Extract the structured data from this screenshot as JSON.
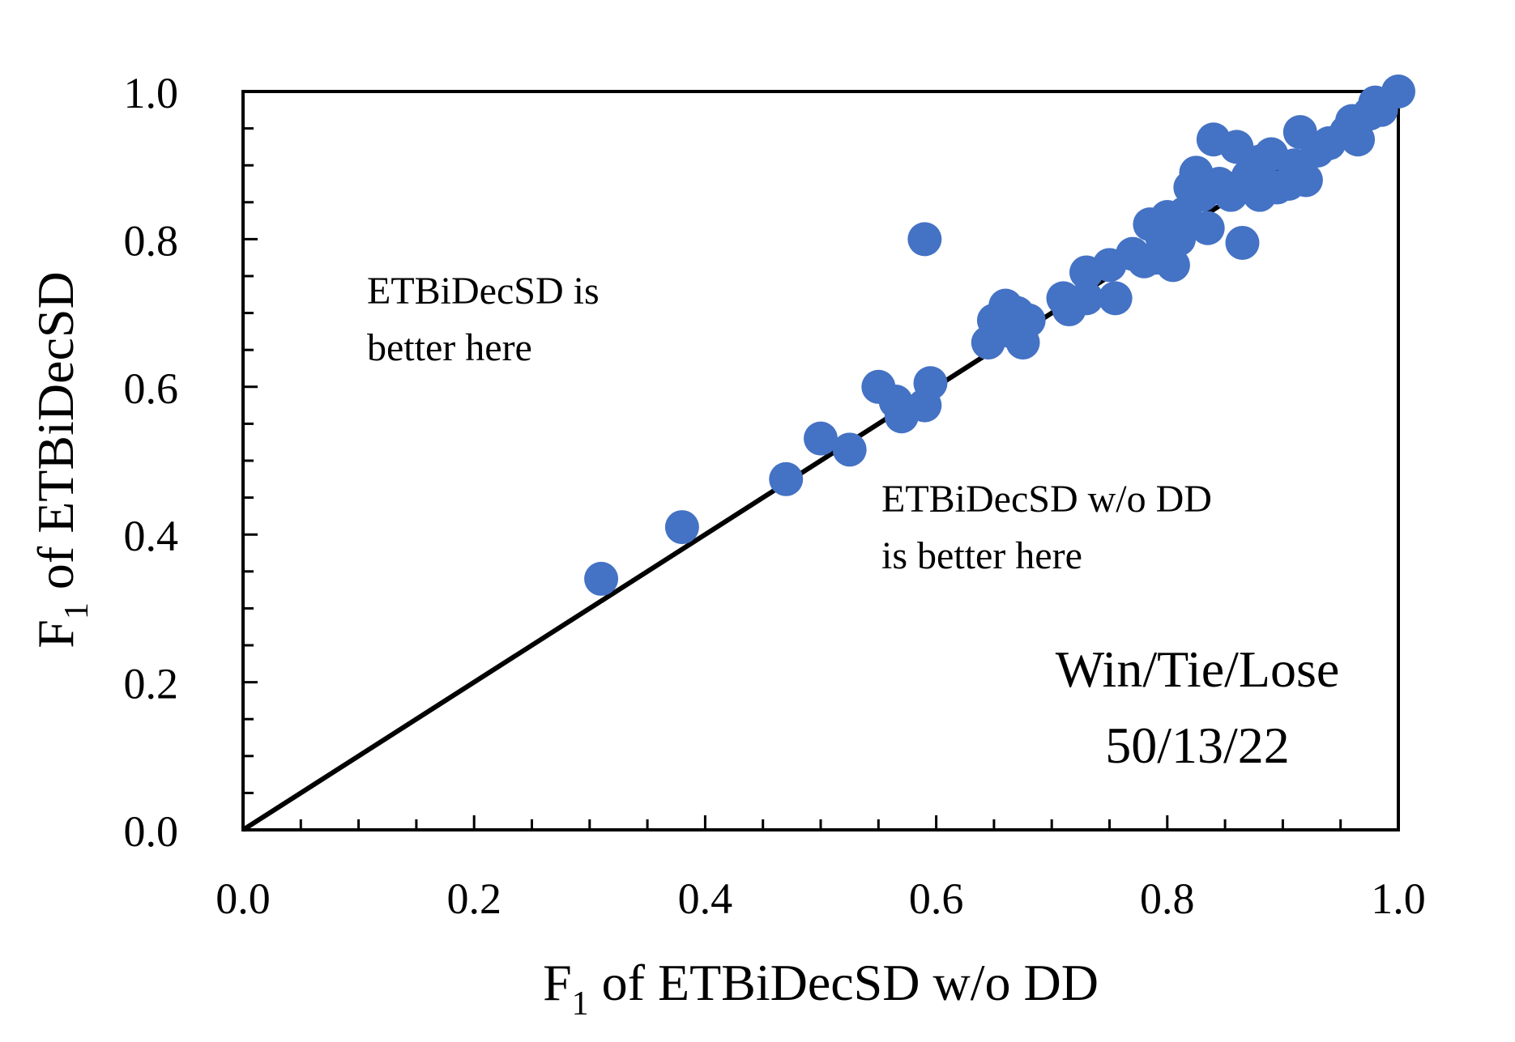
{
  "chart_data": {
    "type": "scatter",
    "xlabel": {
      "main": "F",
      "sub": "1",
      "rest": " of ETBiDecSD w/o DD"
    },
    "ylabel": {
      "main": "F",
      "sub": "1",
      "rest": " of ETBiDecSD"
    },
    "xlim": [
      0,
      1
    ],
    "ylim": [
      0,
      1
    ],
    "xticks": [
      "0.0",
      "0.2",
      "0.4",
      "0.6",
      "0.8",
      "1.0"
    ],
    "yticks": [
      "0.0",
      "0.2",
      "0.4",
      "0.6",
      "0.8",
      "1.0"
    ],
    "grid": false,
    "legend": "none",
    "diagonal_line": {
      "from": [
        0,
        0
      ],
      "to": [
        1,
        1
      ],
      "color": "#000000"
    },
    "point_color": "#4472C4",
    "annotations": {
      "upper_left": [
        "ETBiDecSD is",
        "better here"
      ],
      "lower_right": [
        "ETBiDecSD w/o DD",
        "is better here"
      ],
      "summary": [
        "Win/Tie/Lose",
        "50/13/22"
      ]
    },
    "points": [
      [
        0.31,
        0.34
      ],
      [
        0.38,
        0.41
      ],
      [
        0.47,
        0.475
      ],
      [
        0.5,
        0.53
      ],
      [
        0.525,
        0.515
      ],
      [
        0.55,
        0.6
      ],
      [
        0.565,
        0.58
      ],
      [
        0.57,
        0.56
      ],
      [
        0.59,
        0.575
      ],
      [
        0.595,
        0.605
      ],
      [
        0.59,
        0.8
      ],
      [
        0.645,
        0.66
      ],
      [
        0.65,
        0.69
      ],
      [
        0.66,
        0.71
      ],
      [
        0.665,
        0.675
      ],
      [
        0.67,
        0.7
      ],
      [
        0.675,
        0.66
      ],
      [
        0.68,
        0.69
      ],
      [
        0.71,
        0.72
      ],
      [
        0.715,
        0.705
      ],
      [
        0.73,
        0.72
      ],
      [
        0.73,
        0.755
      ],
      [
        0.75,
        0.765
      ],
      [
        0.755,
        0.72
      ],
      [
        0.77,
        0.78
      ],
      [
        0.78,
        0.77
      ],
      [
        0.785,
        0.82
      ],
      [
        0.79,
        0.775
      ],
      [
        0.795,
        0.805
      ],
      [
        0.8,
        0.83
      ],
      [
        0.8,
        0.79
      ],
      [
        0.805,
        0.765
      ],
      [
        0.81,
        0.8
      ],
      [
        0.815,
        0.835
      ],
      [
        0.82,
        0.87
      ],
      [
        0.825,
        0.89
      ],
      [
        0.83,
        0.86
      ],
      [
        0.835,
        0.815
      ],
      [
        0.84,
        0.935
      ],
      [
        0.845,
        0.875
      ],
      [
        0.85,
        0.87
      ],
      [
        0.855,
        0.86
      ],
      [
        0.86,
        0.925
      ],
      [
        0.865,
        0.795
      ],
      [
        0.87,
        0.885
      ],
      [
        0.88,
        0.905
      ],
      [
        0.88,
        0.86
      ],
      [
        0.89,
        0.915
      ],
      [
        0.895,
        0.87
      ],
      [
        0.905,
        0.875
      ],
      [
        0.91,
        0.9
      ],
      [
        0.915,
        0.945
      ],
      [
        0.92,
        0.88
      ],
      [
        0.93,
        0.92
      ],
      [
        0.94,
        0.93
      ],
      [
        0.955,
        0.945
      ],
      [
        0.96,
        0.96
      ],
      [
        0.965,
        0.935
      ],
      [
        0.975,
        0.97
      ],
      [
        0.98,
        0.985
      ],
      [
        0.985,
        0.975
      ],
      [
        1.0,
        1.0
      ]
    ]
  }
}
